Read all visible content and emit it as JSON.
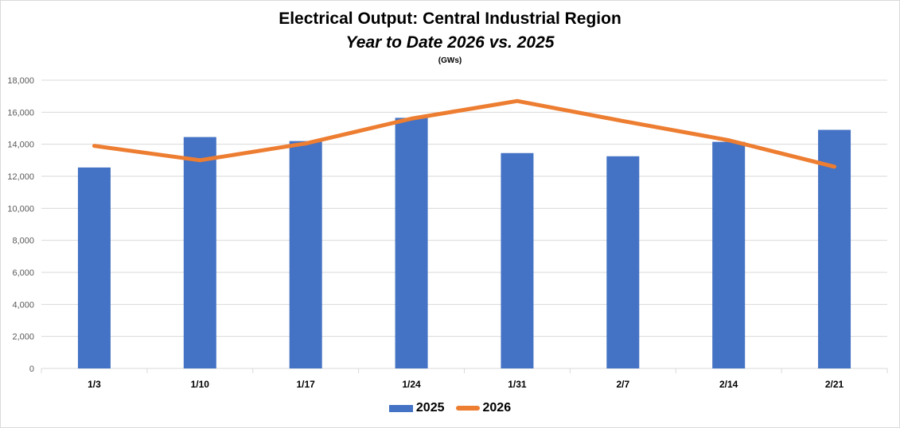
{
  "chart_data": {
    "type": "bar",
    "title": "Electrical Output:  Central Industrial Region",
    "subtitle": "Year to Date 2026 vs. 2025",
    "units": "(GWs)",
    "categories": [
      "1/3",
      "1/10",
      "1/17",
      "1/24",
      "1/31",
      "2/7",
      "2/14",
      "2/21"
    ],
    "series": [
      {
        "name": "2025",
        "type": "bar",
        "color": "#4472c4",
        "values": [
          12550,
          14450,
          14200,
          15650,
          13450,
          13250,
          14150,
          14900
        ]
      },
      {
        "name": "2026",
        "type": "line",
        "color": "#ed7d31",
        "values": [
          13900,
          13000,
          14050,
          15600,
          16700,
          15450,
          14250,
          12600
        ]
      }
    ],
    "ylim": [
      0,
      18000
    ],
    "yticks": [
      "0",
      "2,000",
      "4,000",
      "6,000",
      "8,000",
      "10,000",
      "12,000",
      "14,000",
      "16,000",
      "18,000"
    ],
    "ytick_values": [
      0,
      2000,
      4000,
      6000,
      8000,
      10000,
      12000,
      14000,
      16000,
      18000
    ],
    "grid": true,
    "legend": "bottom-center"
  }
}
